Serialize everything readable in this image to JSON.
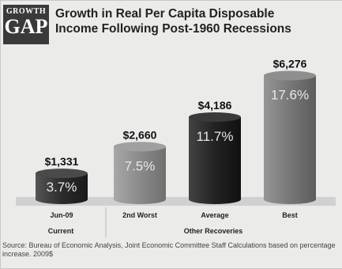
{
  "badge": {
    "line1": "GROWTH",
    "line2": "GAP"
  },
  "title_line1": "Growth in Real Per Capita Disposable",
  "title_line2": "Income Following Post-1960 Recessions",
  "source": "Source:  Bureau of Economic Analysis, Joint Economic Committee Staff Calculations based on percentage increase. 2009$",
  "colors": {
    "bar_current": "#3a3a3a",
    "bar_2nd": "#8d8d8d",
    "bar_avg": "#2b2b2b",
    "bar_best": "#7a7a7a",
    "floor": "#d2d2d2"
  },
  "chart_data": {
    "type": "bar",
    "categories": [
      "Jun-09",
      "2nd Worst",
      "Average",
      "Best"
    ],
    "values_pct": [
      3.7,
      7.5,
      11.7,
      17.6
    ],
    "pct_labels": [
      "3.7%",
      "7.5%",
      "11.7%",
      "17.6%"
    ],
    "dollar_labels": [
      "$1,331",
      "$2,660",
      "$4,186",
      "$6,276"
    ],
    "group_labels": [
      "Current",
      "Other Recoveries"
    ],
    "ylim": [
      0,
      18
    ],
    "grid": false
  }
}
